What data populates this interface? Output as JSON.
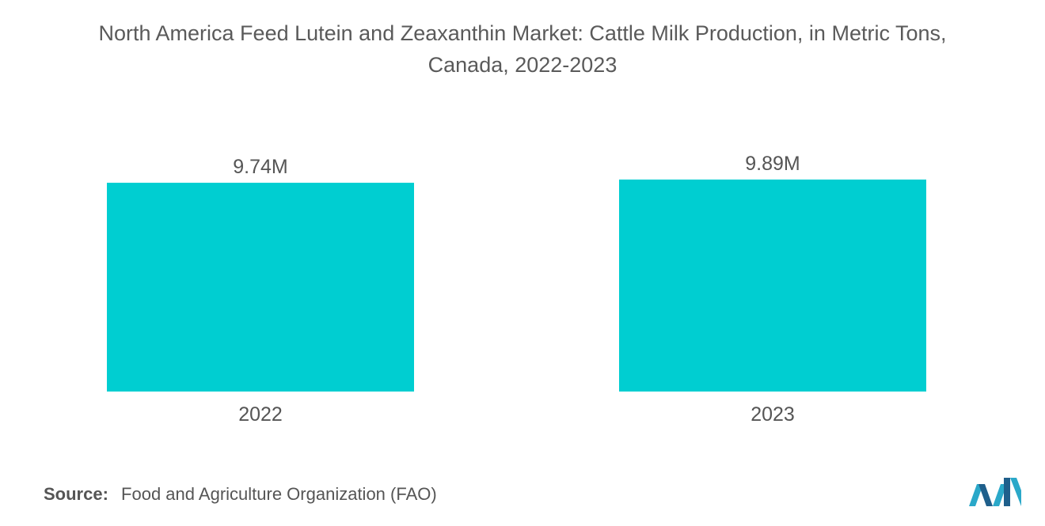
{
  "title_line1": "North America Feed Lutein and Zeaxanthin Market: Cattle Milk Production, in Metric Tons,",
  "title_line2": "Canada, 2022-2023",
  "source_label": "Source:",
  "source_text": "Food and Agriculture Organization (FAO)",
  "colors": {
    "bar": "#00CED1",
    "text": "#555555"
  },
  "chart_data": {
    "type": "bar",
    "title": "North America Feed Lutein and Zeaxanthin Market: Cattle Milk Production, in Metric Tons, Canada, 2022-2023",
    "categories": [
      "2022",
      "2023"
    ],
    "values": [
      9740000,
      9890000
    ],
    "data_labels": [
      "9.74M",
      "9.89M"
    ],
    "xlabel": "",
    "ylabel": "",
    "ylim": [
      0,
      9890000
    ],
    "grid": false,
    "legend": "none"
  }
}
